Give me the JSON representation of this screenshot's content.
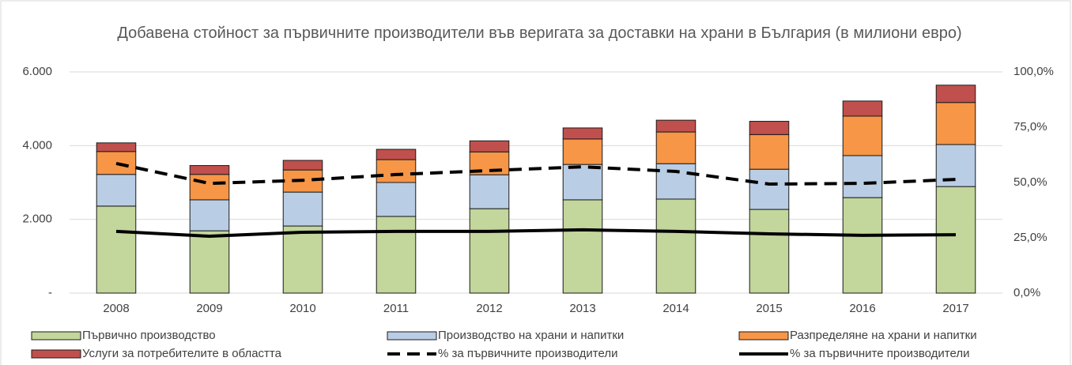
{
  "chart_data": {
    "type": "bar",
    "title": "Добавена стойност за първичните производители във веригата за доставки на храни в България (в милиони евро)",
    "categories": [
      "2008",
      "2009",
      "2010",
      "2011",
      "2012",
      "2013",
      "2014",
      "2015",
      "2016",
      "2017"
    ],
    "series": [
      {
        "name": "Първично производство",
        "type": "bar",
        "color": "#c3d69b",
        "values": [
          2360,
          1690,
          1820,
          2080,
          2290,
          2530,
          2550,
          2270,
          2590,
          2890
        ]
      },
      {
        "name": "Производство на храни и напитки",
        "type": "bar",
        "color": "#b9cde5",
        "values": [
          860,
          840,
          920,
          920,
          920,
          960,
          960,
          1090,
          1140,
          1140
        ]
      },
      {
        "name": "Разпределяне на храни и напитки",
        "type": "bar",
        "color": "#f79646",
        "values": [
          620,
          690,
          600,
          620,
          620,
          690,
          860,
          940,
          1070,
          1140
        ]
      },
      {
        "name": "Услуги за потребителите в областта",
        "type": "bar",
        "color": "#c0504d",
        "values": [
          235,
          240,
          260,
          280,
          300,
          300,
          320,
          360,
          410,
          470
        ]
      },
      {
        "name": "% за първичните производители",
        "type": "line",
        "dashed": true,
        "axis": "y2",
        "color": "#000000",
        "values": [
          58.6,
          49.6,
          51,
          53.6,
          55.4,
          57.1,
          55,
          49.3,
          49.6,
          51.4
        ]
      },
      {
        "name": "% за първичните производители",
        "type": "line",
        "dashed": false,
        "axis": "y2",
        "color": "#000000",
        "values": [
          27.9,
          25.7,
          27.5,
          27.9,
          27.9,
          28.6,
          27.9,
          26.8,
          26.1,
          26.4
        ]
      }
    ],
    "ylim": [
      0,
      6000
    ],
    "yticks": [
      {
        "value": 0,
        "label": "-"
      },
      {
        "value": 2000,
        "label": "2.000"
      },
      {
        "value": 4000,
        "label": "4.000"
      },
      {
        "value": 6000,
        "label": "6.000"
      }
    ],
    "y2lim": [
      0,
      100
    ],
    "y2ticks": [
      {
        "value": 0,
        "label": "0,0%"
      },
      {
        "value": 25,
        "label": "25,0%"
      },
      {
        "value": 50,
        "label": "50,0%"
      },
      {
        "value": 75,
        "label": "75,0%"
      },
      {
        "value": 100,
        "label": "100,0%"
      }
    ],
    "grid": true
  }
}
